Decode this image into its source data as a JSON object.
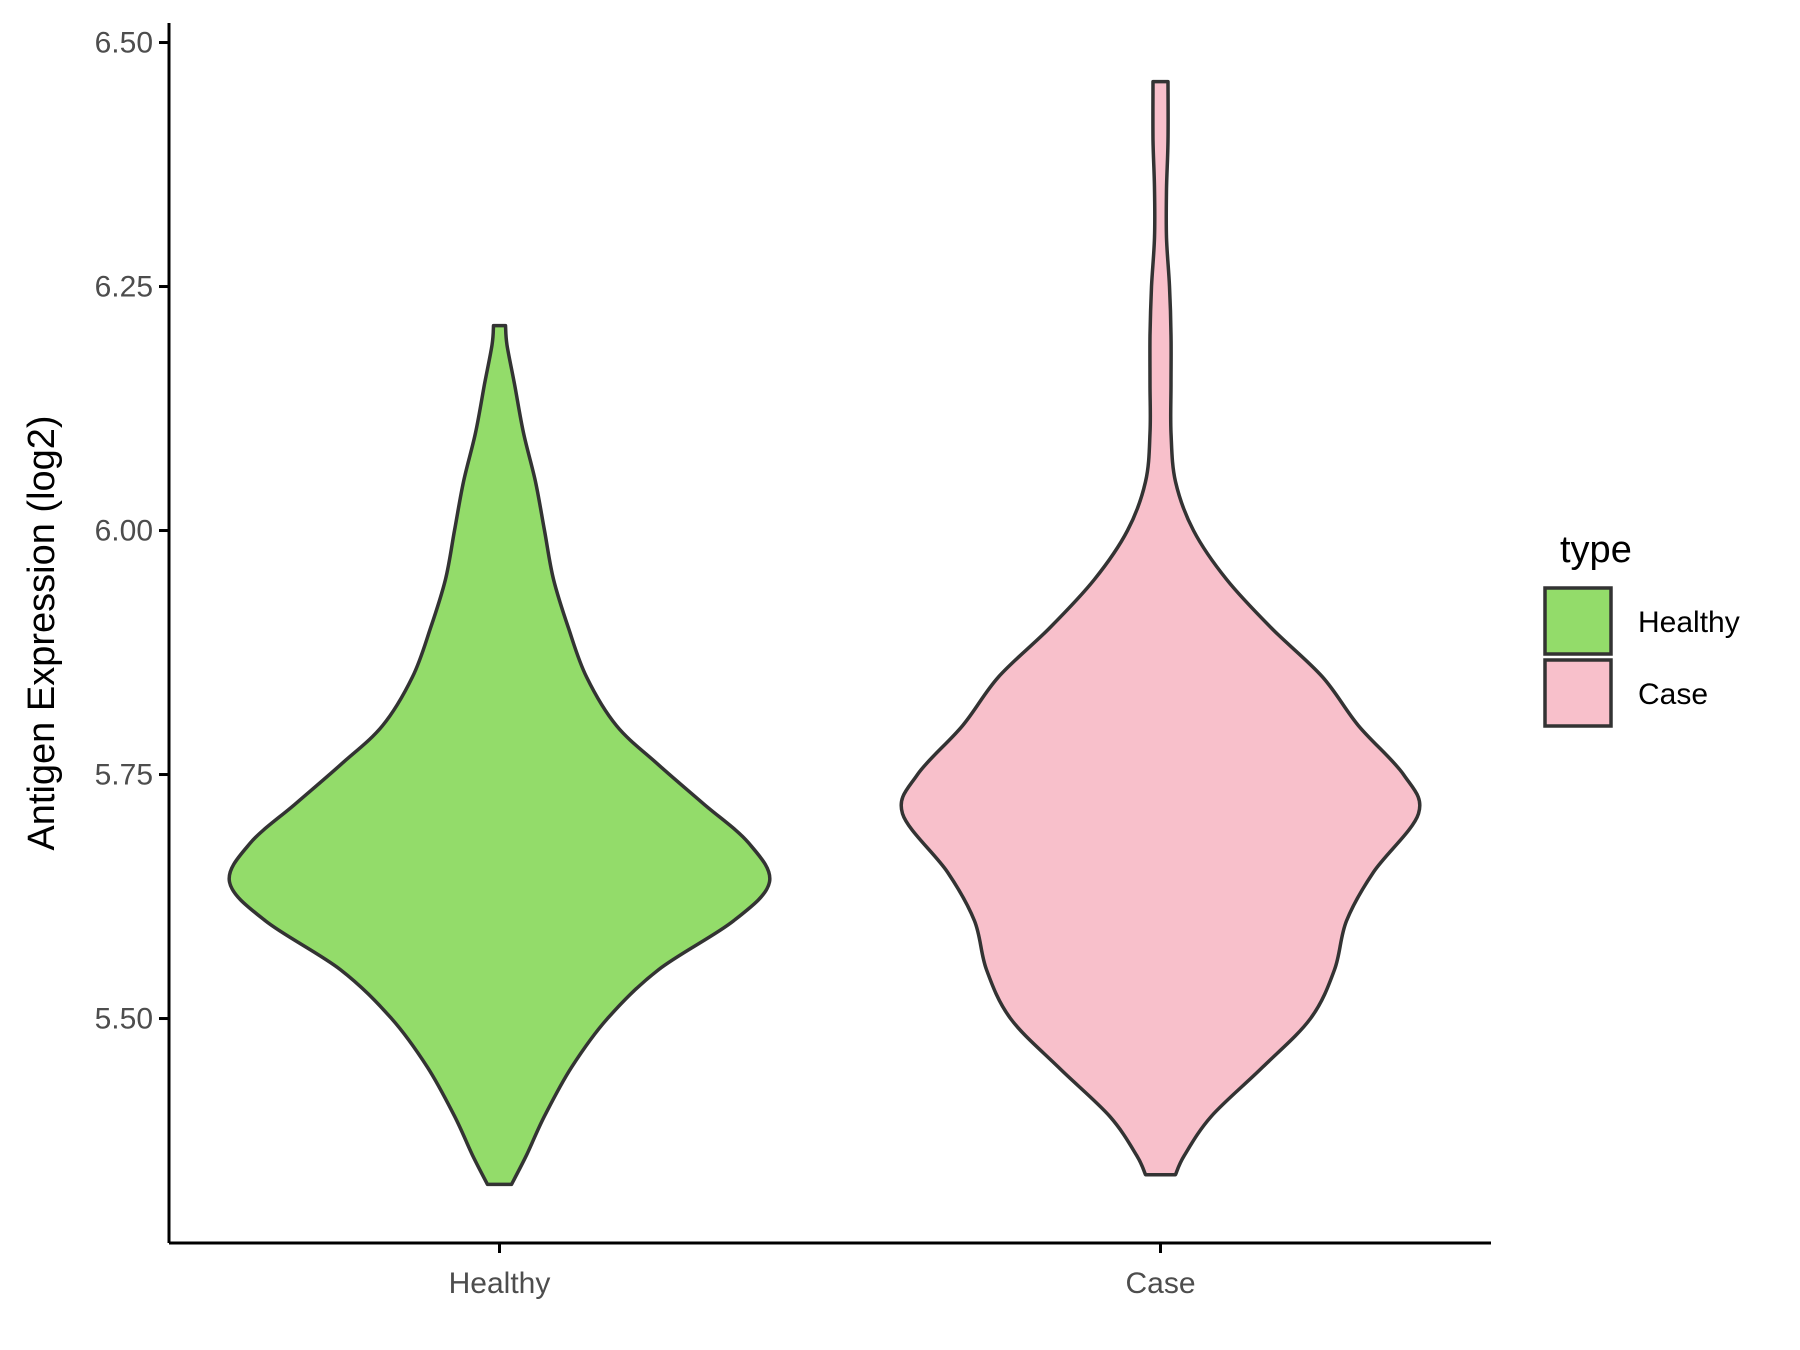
{
  "chart_data": {
    "type": "violin",
    "xlabel": "",
    "ylabel": "Antigen Expression (log2)",
    "ylim": [
      5.27,
      6.52
    ],
    "yticks": [
      "5.50",
      "5.75",
      "6.00",
      "6.25",
      "6.50"
    ],
    "categories": [
      "Healthy",
      "Case"
    ],
    "legend": {
      "title": "type",
      "position": "right",
      "entries": [
        "Healthy",
        "Case"
      ]
    },
    "grid": false,
    "series": [
      {
        "name": "Healthy",
        "color": "#93DC6A",
        "min": 5.33,
        "max": 6.21,
        "profile": [
          [
            5.33,
            0.04
          ],
          [
            5.36,
            0.09
          ],
          [
            5.4,
            0.15
          ],
          [
            5.45,
            0.24
          ],
          [
            5.5,
            0.36
          ],
          [
            5.55,
            0.53
          ],
          [
            5.6,
            0.78
          ],
          [
            5.64,
            0.9
          ],
          [
            5.68,
            0.83
          ],
          [
            5.72,
            0.68
          ],
          [
            5.76,
            0.53
          ],
          [
            5.8,
            0.39
          ],
          [
            5.85,
            0.29
          ],
          [
            5.9,
            0.23
          ],
          [
            5.95,
            0.18
          ],
          [
            6.0,
            0.15
          ],
          [
            6.05,
            0.12
          ],
          [
            6.1,
            0.08
          ],
          [
            6.15,
            0.05
          ],
          [
            6.19,
            0.025
          ],
          [
            6.21,
            0.02
          ]
        ]
      },
      {
        "name": "Case",
        "color": "#F8C0CB",
        "min": 5.34,
        "max": 6.46,
        "profile": [
          [
            5.34,
            0.05
          ],
          [
            5.36,
            0.08
          ],
          [
            5.4,
            0.17
          ],
          [
            5.45,
            0.34
          ],
          [
            5.5,
            0.5
          ],
          [
            5.55,
            0.58
          ],
          [
            5.6,
            0.62
          ],
          [
            5.65,
            0.71
          ],
          [
            5.71,
            0.86
          ],
          [
            5.75,
            0.81
          ],
          [
            5.8,
            0.66
          ],
          [
            5.85,
            0.54
          ],
          [
            5.9,
            0.37
          ],
          [
            5.95,
            0.22
          ],
          [
            6.0,
            0.11
          ],
          [
            6.05,
            0.05
          ],
          [
            6.1,
            0.035
          ],
          [
            6.15,
            0.035
          ],
          [
            6.2,
            0.035
          ],
          [
            6.25,
            0.03
          ],
          [
            6.3,
            0.02
          ],
          [
            6.35,
            0.02
          ],
          [
            6.4,
            0.025
          ],
          [
            6.46,
            0.025
          ]
        ]
      }
    ]
  }
}
